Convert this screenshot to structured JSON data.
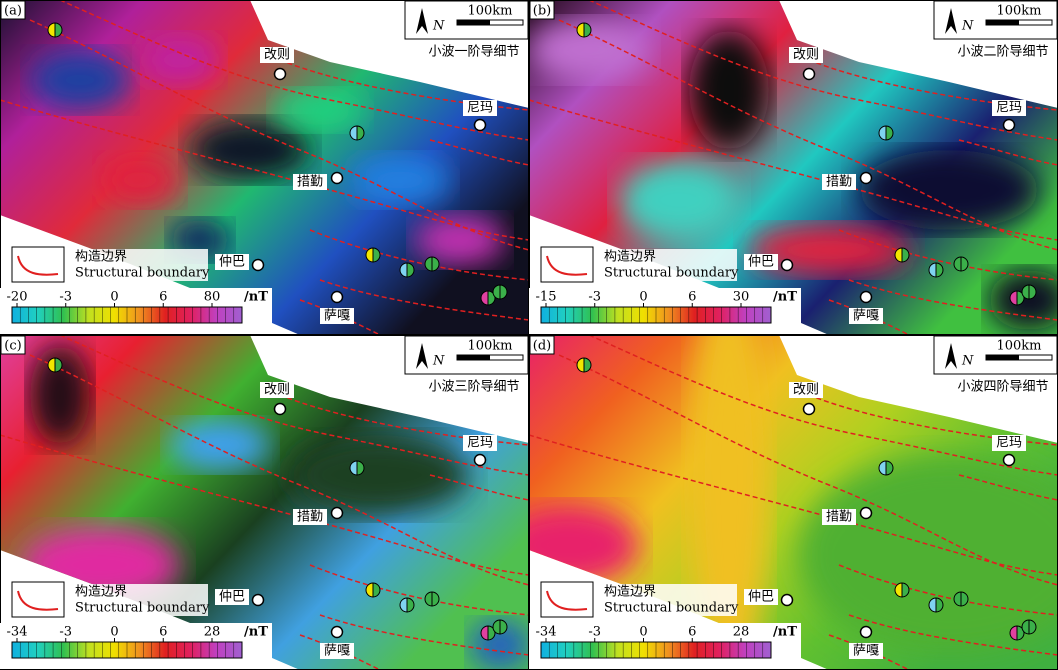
{
  "panels": [
    {
      "label": "(a)",
      "north": "N",
      "scale": "100km",
      "title": "小波一阶导细节",
      "colorbar": {
        "ticks": [
          -20,
          -3,
          0,
          6,
          80
        ],
        "unit": "/nT"
      }
    },
    {
      "label": "(b)",
      "north": "N",
      "scale": "100km",
      "title": "小波二阶导细节",
      "colorbar": {
        "ticks": [
          -15,
          -3,
          0,
          6,
          30
        ],
        "unit": "/nT"
      }
    },
    {
      "label": "(c)",
      "north": "N",
      "scale": "100km",
      "title": "小波三阶导细节",
      "colorbar": {
        "ticks": [
          -34,
          -3,
          0,
          6,
          28
        ],
        "unit": "/nT"
      }
    },
    {
      "label": "(d)",
      "north": "N",
      "scale": "100km",
      "title": "小波四阶导细节",
      "colorbar": {
        "ticks": [
          -34,
          -3,
          0,
          6,
          28
        ],
        "unit": "/nT"
      }
    }
  ],
  "places": [
    "改则",
    "尼玛",
    "措勤",
    "仲巴",
    "萨嘎"
  ],
  "legend": {
    "title_cn": "构造边界",
    "title_en": "Structural boundary"
  }
}
